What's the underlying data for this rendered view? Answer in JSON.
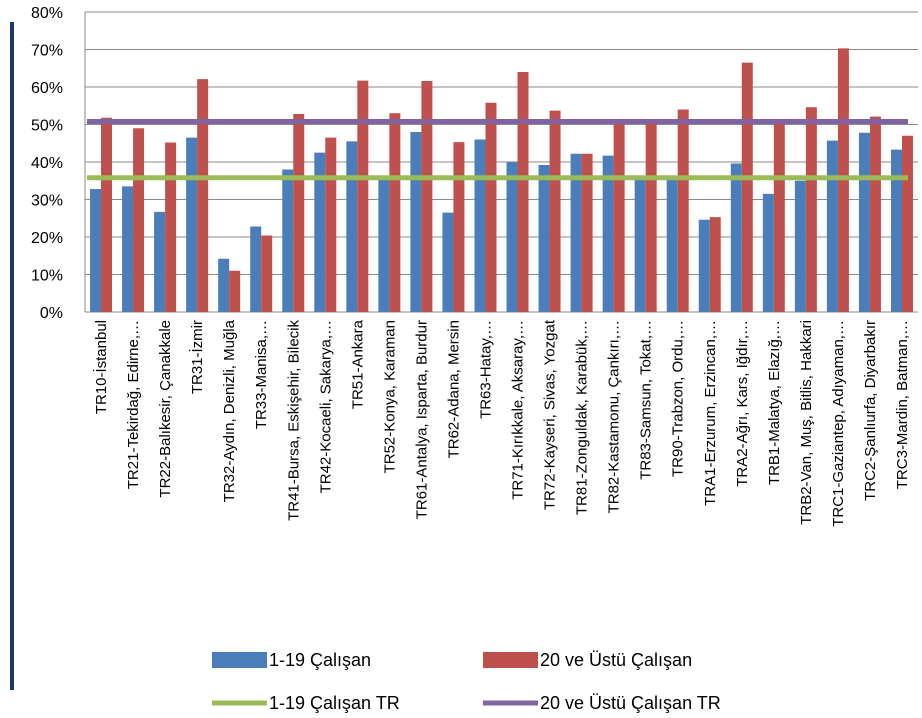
{
  "chart_data": {
    "type": "bar",
    "categories": [
      "TR10-İstanbul",
      "TR21-Tekirdağ, Edirne,…",
      "TR22-Balıkesir, Çanakkale",
      "TR31-İzmir",
      "TR32-Aydın, Denizli, Muğla",
      "TR33-Manisa,…",
      "TR41-Bursa, Eskişehir, Bilecik",
      "TR42-Kocaeli, Sakarya,…",
      "TR51-Ankara",
      "TR52-Konya, Karaman",
      "TR61-Antalya, Isparta, Burdur",
      "TR62-Adana, Mersin",
      "TR63-Hatay,…",
      "TR71-Kırıkkale, Aksaray,…",
      "TR72-Kayseri, Sivas, Yozgat",
      "TR81-Zonguldak, Karabük,…",
      "TR82-Kastamonu, Çankırı,…",
      "TR83-Samsun, Tokat,…",
      "TR90-Trabzon, Ordu,…",
      "TRA1-Erzurum, Erzincan,…",
      "TRA2-Ağrı, Kars, Iğdır,…",
      "TRB1-Malatya, Elazığ,…",
      "TRB2-Van, Muş, Bitlis, Hakkari",
      "TRC1-Gaziantep, Adıyaman,…",
      "TRC2-Şanlıurfa, Diyarbakır",
      "TRC3-Mardin, Batman,…"
    ],
    "series": [
      {
        "name": "1-19 Çalışan",
        "color": "#4a7ebb",
        "values": [
          32.8,
          33.5,
          26.7,
          46.5,
          14.2,
          22.8,
          38.0,
          42.5,
          45.5,
          36.0,
          48.0,
          26.5,
          46.0,
          40.0,
          39.2,
          42.2,
          41.7,
          36.0,
          36.0,
          24.6,
          39.6,
          31.5,
          35.0,
          45.7,
          47.8,
          43.3
        ]
      },
      {
        "name": "20 ve Üstü Çalışan",
        "color": "#c0504d",
        "values": [
          51.8,
          49.0,
          45.2,
          62.1,
          11.0,
          20.4,
          52.8,
          46.5,
          61.7,
          53.0,
          61.6,
          45.3,
          55.8,
          64.0,
          53.7,
          42.2,
          50.1,
          50.2,
          54.0,
          25.3,
          66.5,
          51.4,
          54.6,
          70.3,
          52.1,
          47.0
        ]
      }
    ],
    "reference_lines": [
      {
        "name": "1-19 Çalışan TR",
        "value": 35.8,
        "color": "#9bbb59"
      },
      {
        "name": "20 ve Üstü Çalışan TR",
        "value": 50.8,
        "color": "#8064a2"
      }
    ],
    "ylim": [
      0,
      80
    ],
    "yticks": [
      "0%",
      "10%",
      "20%",
      "30%",
      "40%",
      "50%",
      "60%",
      "70%",
      "80%"
    ],
    "grid": true,
    "legend_position": "bottom",
    "title": "",
    "xlabel": "",
    "ylabel": ""
  }
}
